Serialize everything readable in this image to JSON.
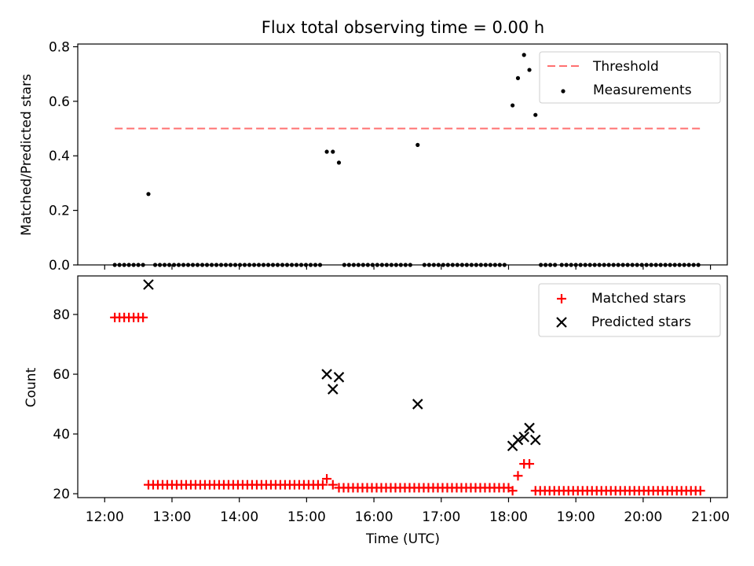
{
  "figure": {
    "title": "Flux total observing time = 0.00 h"
  },
  "chart_data": [
    {
      "type": "scatter",
      "xlabel": "",
      "ylabel": "Matched/Predicted stars",
      "xlim": [
        11.6,
        21.25
      ],
      "ylim": [
        0.0,
        0.81
      ],
      "yticks": [
        0.0,
        0.2,
        0.4,
        0.6,
        0.8
      ],
      "ytick_labels": [
        "0.0",
        "0.2",
        "0.4",
        "0.6",
        "0.8"
      ],
      "grid": false,
      "legend_position": "top-right",
      "threshold": {
        "name": "Threshold",
        "y": 0.5,
        "x_range": [
          12.15,
          20.85
        ],
        "color": "#ff7070",
        "style": "dashed"
      },
      "series": [
        {
          "name": "Measurements",
          "marker": "dot",
          "color": "#000000",
          "x": [
            12.15,
            12.22,
            12.29,
            12.36,
            12.43,
            12.5,
            12.57,
            12.65,
            12.75,
            12.82,
            12.89,
            12.96,
            13.03,
            13.1,
            13.17,
            13.24,
            13.31,
            13.38,
            13.45,
            13.52,
            13.59,
            13.66,
            13.73,
            13.8,
            13.87,
            13.94,
            14.01,
            14.08,
            14.15,
            14.22,
            14.29,
            14.36,
            14.43,
            14.5,
            14.57,
            14.64,
            14.71,
            14.78,
            14.85,
            14.92,
            14.99,
            15.06,
            15.13,
            15.2,
            15.3,
            15.39,
            15.48,
            15.56,
            15.63,
            15.7,
            15.77,
            15.84,
            15.91,
            15.98,
            16.05,
            16.12,
            16.19,
            16.26,
            16.33,
            16.4,
            16.47,
            16.54,
            16.65,
            16.75,
            16.82,
            16.89,
            16.96,
            17.03,
            17.1,
            17.17,
            17.24,
            17.31,
            17.38,
            17.45,
            17.52,
            17.59,
            17.66,
            17.73,
            17.8,
            17.87,
            17.94,
            18.06,
            18.14,
            18.23,
            18.31,
            18.4,
            18.48,
            18.55,
            18.62,
            18.69,
            18.79,
            18.86,
            18.93,
            19.0,
            19.07,
            19.14,
            19.21,
            19.28,
            19.35,
            19.42,
            19.49,
            19.56,
            19.63,
            19.7,
            19.77,
            19.84,
            19.91,
            19.98,
            20.05,
            20.12,
            20.19,
            20.26,
            20.33,
            20.4,
            20.47,
            20.54,
            20.61,
            20.68,
            20.75,
            20.82
          ],
          "y": [
            0,
            0,
            0,
            0,
            0,
            0,
            0,
            0.26,
            0,
            0,
            0,
            0,
            0,
            0,
            0,
            0,
            0,
            0,
            0,
            0,
            0,
            0,
            0,
            0,
            0,
            0,
            0,
            0,
            0,
            0,
            0,
            0,
            0,
            0,
            0,
            0,
            0,
            0,
            0,
            0,
            0,
            0,
            0,
            0,
            0.415,
            0.415,
            0.375,
            0,
            0,
            0,
            0,
            0,
            0,
            0,
            0,
            0,
            0,
            0,
            0,
            0,
            0,
            0,
            0.44,
            0,
            0,
            0,
            0,
            0,
            0,
            0,
            0,
            0,
            0,
            0,
            0,
            0,
            0,
            0,
            0,
            0,
            0,
            0.585,
            0.685,
            0.77,
            0.715,
            0.55,
            0,
            0,
            0,
            0,
            0,
            0,
            0,
            0,
            0,
            0,
            0,
            0,
            0,
            0,
            0,
            0,
            0,
            0,
            0,
            0,
            0,
            0,
            0,
            0,
            0,
            0,
            0,
            0,
            0,
            0,
            0,
            0,
            0,
            0
          ]
        }
      ]
    },
    {
      "type": "scatter",
      "xlabel": "Time (UTC)",
      "ylabel": "Count",
      "xlim": [
        11.6,
        21.25
      ],
      "ylim": [
        18.7,
        92.9
      ],
      "xticks": [
        12,
        13,
        14,
        15,
        16,
        17,
        18,
        19,
        20,
        21
      ],
      "xtick_labels": [
        "12:00",
        "13:00",
        "14:00",
        "15:00",
        "16:00",
        "17:00",
        "18:00",
        "19:00",
        "20:00",
        "21:00"
      ],
      "yticks": [
        20,
        40,
        60,
        80
      ],
      "ytick_labels": [
        "20",
        "40",
        "60",
        "80"
      ],
      "grid": false,
      "legend_position": "top-right",
      "series": [
        {
          "name": "Matched stars",
          "marker": "plus",
          "color": "#ff0000",
          "x": [
            12.15,
            12.22,
            12.29,
            12.36,
            12.43,
            12.5,
            12.57,
            12.65,
            12.72,
            12.79,
            12.86,
            12.93,
            13.0,
            13.07,
            13.14,
            13.21,
            13.28,
            13.35,
            13.42,
            13.49,
            13.56,
            13.63,
            13.7,
            13.77,
            13.84,
            13.91,
            13.98,
            14.05,
            14.12,
            14.19,
            14.26,
            14.33,
            14.4,
            14.47,
            14.54,
            14.61,
            14.68,
            14.75,
            14.82,
            14.89,
            14.96,
            15.03,
            15.1,
            15.17,
            15.24,
            15.3,
            15.39,
            15.48,
            15.55,
            15.62,
            15.69,
            15.76,
            15.83,
            15.9,
            15.97,
            16.04,
            16.11,
            16.18,
            16.25,
            16.32,
            16.39,
            16.46,
            16.53,
            16.6,
            16.67,
            16.74,
            16.81,
            16.88,
            16.95,
            17.02,
            17.09,
            17.16,
            17.23,
            17.3,
            17.37,
            17.44,
            17.51,
            17.58,
            17.65,
            17.72,
            17.79,
            17.86,
            17.93,
            18.0,
            18.06,
            18.14,
            18.23,
            18.31,
            18.4,
            18.47,
            18.54,
            18.61,
            18.68,
            18.75,
            18.82,
            18.89,
            18.96,
            19.03,
            19.1,
            19.17,
            19.24,
            19.31,
            19.38,
            19.45,
            19.52,
            19.59,
            19.66,
            19.73,
            19.8,
            19.87,
            19.94,
            20.01,
            20.08,
            20.15,
            20.22,
            20.29,
            20.36,
            20.43,
            20.5,
            20.57,
            20.64,
            20.71,
            20.78,
            20.85
          ],
          "y": [
            79,
            79,
            79,
            79,
            79,
            79,
            79,
            23,
            23,
            23,
            23,
            23,
            23,
            23,
            23,
            23,
            23,
            23,
            23,
            23,
            23,
            23,
            23,
            23,
            23,
            23,
            23,
            23,
            23,
            23,
            23,
            23,
            23,
            23,
            23,
            23,
            23,
            23,
            23,
            23,
            23,
            23,
            23,
            23,
            23,
            25,
            23,
            22,
            22,
            22,
            22,
            22,
            22,
            22,
            22,
            22,
            22,
            22,
            22,
            22,
            22,
            22,
            22,
            22,
            22,
            22,
            22,
            22,
            22,
            22,
            22,
            22,
            22,
            22,
            22,
            22,
            22,
            22,
            22,
            22,
            22,
            22,
            22,
            22,
            21,
            26,
            30,
            30,
            21,
            21,
            21,
            21,
            21,
            21,
            21,
            21,
            21,
            21,
            21,
            21,
            21,
            21,
            21,
            21,
            21,
            21,
            21,
            21,
            21,
            21,
            21,
            21,
            21,
            21,
            21,
            21,
            21,
            21,
            21,
            21,
            21,
            21,
            21,
            21
          ]
        },
        {
          "name": "Predicted stars",
          "marker": "x",
          "color": "#000000",
          "x": [
            12.65,
            15.3,
            15.39,
            15.48,
            16.65,
            18.06,
            18.14,
            18.23,
            18.31,
            18.4
          ],
          "y": [
            90,
            60,
            55,
            59,
            50,
            36,
            38,
            39,
            42,
            38
          ]
        }
      ]
    }
  ]
}
